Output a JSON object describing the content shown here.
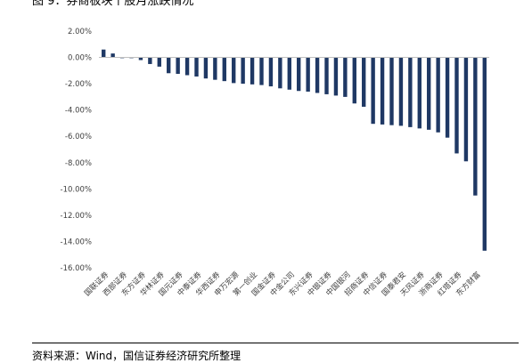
{
  "figure": {
    "title": "图 9：券商板块个股月涨跌情况",
    "source": "资料来源：Wind，国信证券经济研究所整理"
  },
  "chart_data": {
    "type": "bar",
    "title": "",
    "xlabel": "",
    "ylabel": "",
    "ylim": [
      -16,
      2
    ],
    "yticks": [
      2,
      0,
      -2,
      -4,
      -6,
      -8,
      -10,
      -12,
      -14,
      -16
    ],
    "ytick_labels": [
      "2.00%",
      "0.00%",
      "-2.00%",
      "-4.00%",
      "-6.00%",
      "-8.00%",
      "-10.00%",
      "-12.00%",
      "-14.00%",
      "-16.00%"
    ],
    "bar_color": "#1f3864",
    "grid": false,
    "legend": "none",
    "labeled_categories": [
      "国联证券",
      "西部证券",
      "东方证券",
      "华林证券",
      "国元证券",
      "中泰证券",
      "华西证券",
      "申万宏源",
      "第一创业",
      "国金证券",
      "中金公司",
      "东兴证券",
      "中银证券",
      "中国银河",
      "招商证券",
      "中信证券",
      "国泰君安",
      "天风证券",
      "浙商证券",
      "红塔证券",
      "东方财富"
    ],
    "bar_count": 42,
    "values": [
      0.6,
      0.3,
      0.0,
      -0.05,
      -0.2,
      -0.5,
      -0.7,
      -1.2,
      -1.25,
      -1.35,
      -1.45,
      -1.6,
      -1.7,
      -1.8,
      -1.95,
      -2.0,
      -2.05,
      -2.1,
      -2.2,
      -2.35,
      -2.45,
      -2.55,
      -2.6,
      -2.7,
      -2.8,
      -2.9,
      -3.0,
      -3.5,
      -3.75,
      -5.05,
      -5.1,
      -5.15,
      -5.2,
      -5.3,
      -5.4,
      -5.5,
      -5.7,
      -6.1,
      -7.3,
      -7.9,
      -10.5,
      -14.7
    ]
  }
}
